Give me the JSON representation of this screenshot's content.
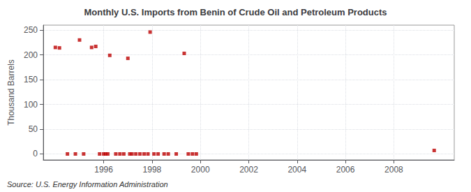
{
  "chart_data": {
    "type": "scatter",
    "title": "Monthly U.S. Imports from Benin of Crude Oil and Petroleum Products",
    "ylabel": "Thousand Barrels",
    "annotation": "Source: U.S. Energy Information Administration",
    "color": "#bb0000",
    "marker": "square",
    "grid": true,
    "xlim": [
      1993.5,
      2010.5
    ],
    "ylim": [
      -12,
      260
    ],
    "xticks": [
      1996,
      1998,
      2000,
      2002,
      2004,
      2006,
      2008
    ],
    "yticks": [
      0,
      50,
      100,
      150,
      200,
      250
    ],
    "x": [
      1994.0,
      1994.17,
      1994.5,
      1994.83,
      1995.0,
      1995.17,
      1995.5,
      1995.67,
      1995.83,
      1996.0,
      1996.08,
      1996.17,
      1996.25,
      1996.5,
      1996.67,
      1996.83,
      1997.0,
      1997.08,
      1997.17,
      1997.33,
      1997.5,
      1997.67,
      1997.83,
      1997.92,
      1998.08,
      1998.25,
      1998.5,
      1998.67,
      1999.0,
      1999.33,
      1999.5,
      1999.67,
      1999.83,
      2009.67
    ],
    "values": [
      215,
      214,
      0,
      0,
      230,
      0,
      215,
      217,
      0,
      0,
      0,
      0,
      199,
      0,
      0,
      0,
      193,
      0,
      0,
      0,
      0,
      0,
      0,
      246,
      0,
      0,
      0,
      0,
      0,
      203,
      0,
      0,
      0,
      7
    ]
  }
}
